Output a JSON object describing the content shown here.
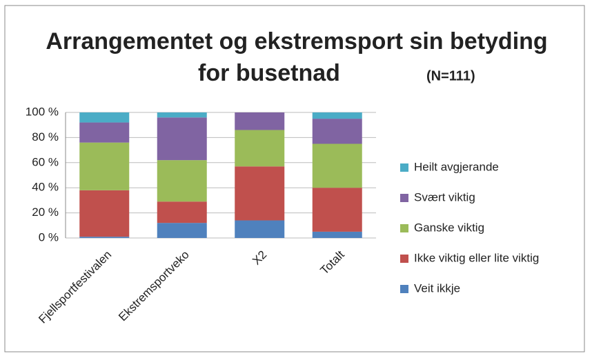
{
  "chart_data": {
    "type": "stacked_bar",
    "title": "Arrangementet og ekstremsport sin betyding for busetnad",
    "subtitle": "(N=111)",
    "categories": [
      "Fjellsportfestivalen",
      "Ekstremsportveko",
      "X2",
      "Totalt"
    ],
    "series": [
      {
        "name": "Veit ikkje",
        "color": "#4f81bd",
        "values": [
          1,
          12,
          14,
          5
        ]
      },
      {
        "name": "Ikke viktig eller lite viktig",
        "color": "#c0504d",
        "values": [
          37,
          17,
          43,
          35
        ]
      },
      {
        "name": "Ganske viktig",
        "color": "#9bbb59",
        "values": [
          38,
          33,
          29,
          35
        ]
      },
      {
        "name": "Svært viktig",
        "color": "#8064a2",
        "values": [
          16,
          34,
          14,
          20
        ]
      },
      {
        "name": "Heilt avgjerande",
        "color": "#4bacc6",
        "values": [
          8,
          4,
          0,
          5
        ]
      }
    ],
    "ylim": [
      0,
      100
    ],
    "yticks": [
      {
        "value": 0,
        "label": "0 %"
      },
      {
        "value": 20,
        "label": "20 %"
      },
      {
        "value": 40,
        "label": "40 %"
      },
      {
        "value": 60,
        "label": "60 %"
      },
      {
        "value": 80,
        "label": "80 %"
      },
      {
        "value": 100,
        "label": "100 %"
      }
    ],
    "grid": true,
    "legend": "right"
  }
}
